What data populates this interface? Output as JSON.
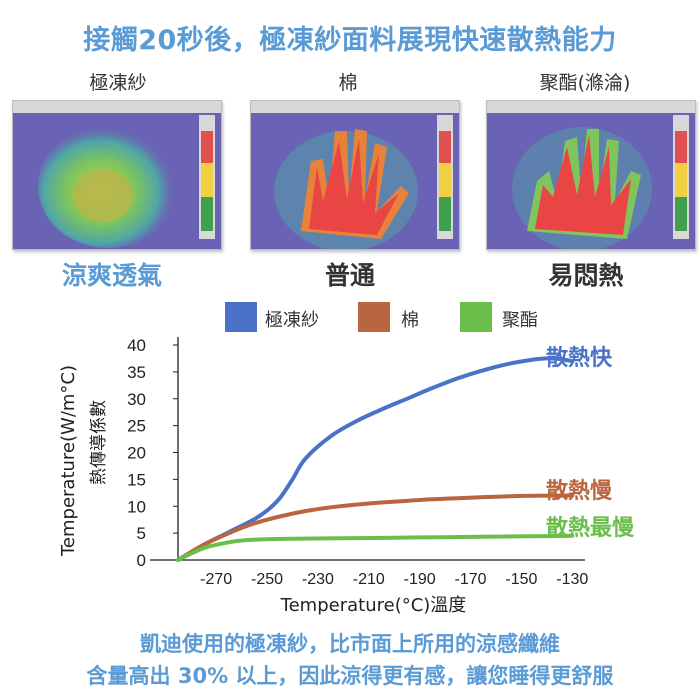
{
  "title": "接觸20秒後，極凍紗面料展現快速散熱能力",
  "fabrics": [
    {
      "name": "極凍紗",
      "caption": "涼爽透氣",
      "caption_color": "#5b9bd5",
      "image": "thermal-image-cool"
    },
    {
      "name": "棉",
      "caption": "普通",
      "caption_color": "#333333",
      "image": "thermal-image-medium"
    },
    {
      "name": "聚酯(滌淪)",
      "caption": "易悶熱",
      "caption_color": "#333333",
      "image": "thermal-image-hot"
    }
  ],
  "chart_data": {
    "type": "line",
    "ylabel_outer": "Temperature(W/m°C)",
    "ylabel_inner": "熱傳導係數",
    "xlabel": "Temperature(°C)溫度",
    "ylim": [
      0,
      40
    ],
    "xlim": [
      -285,
      -125
    ],
    "yticks": [
      0,
      5,
      10,
      15,
      20,
      25,
      30,
      35,
      40
    ],
    "xticks": [
      "-270",
      "-250",
      "-230",
      "-210",
      "-190",
      "-170",
      "-150",
      "-130"
    ],
    "xtick_values": [
      -270,
      -250,
      -230,
      -210,
      -190,
      -170,
      -150,
      -130
    ],
    "grid": false,
    "legend_position": "top",
    "series": [
      {
        "name": "極凍紗",
        "color": "#4a72c8",
        "end_label": "散熱快",
        "x": [
          -285,
          -275,
          -265,
          -255,
          -250,
          -245,
          -240,
          -235,
          -225,
          -215,
          -205,
          -195,
          -185,
          -175,
          -165,
          -155,
          -145,
          -140,
          -135,
          -130
        ],
        "y": [
          0,
          2.8,
          5.2,
          7.6,
          9.2,
          11.5,
          15,
          18.8,
          23,
          25.8,
          28,
          30,
          32,
          33.8,
          35.3,
          36.5,
          37.3,
          37.5,
          37.4,
          37
        ]
      },
      {
        "name": "棉",
        "color": "#b9653f",
        "end_label": "散熱慢",
        "x": [
          -285,
          -275,
          -265,
          -255,
          -245,
          -235,
          -225,
          -215,
          -205,
          -195,
          -185,
          -175,
          -165,
          -155,
          -145,
          -130
        ],
        "y": [
          0,
          2.8,
          5,
          6.8,
          8.1,
          9.1,
          9.8,
          10.3,
          10.7,
          11,
          11.3,
          11.5,
          11.7,
          11.85,
          11.95,
          12
        ]
      },
      {
        "name": "聚酯",
        "color": "#6abe4a",
        "end_label": "散熱最慢",
        "x": [
          -285,
          -275,
          -265,
          -258,
          -250,
          -240,
          -220,
          -200,
          -180,
          -160,
          -140,
          -130
        ],
        "y": [
          0,
          2.2,
          3.3,
          3.7,
          3.85,
          3.95,
          4.05,
          4.15,
          4.25,
          4.35,
          4.45,
          4.5
        ]
      }
    ]
  },
  "footer": {
    "line1": "凱迪使用的極凍紗，比市面上所用的涼感纖維",
    "line2": "含量高出 30% 以上，因此涼得更有感，讓您睡得更舒服"
  }
}
